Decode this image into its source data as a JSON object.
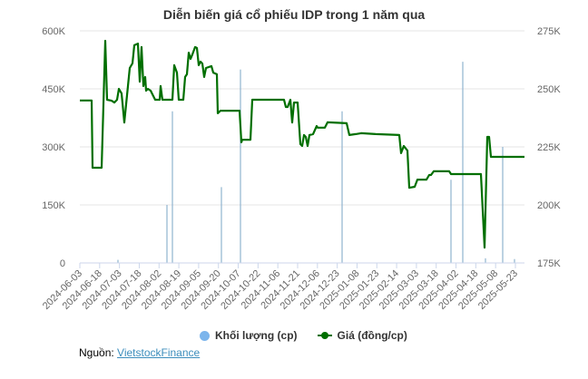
{
  "chart_data": {
    "type": "line",
    "title": "Diễn biến giá cổ phiếu IDP trong 1 năm qua",
    "xlabel": "",
    "ylabel_left": "Khối lượng (cp)",
    "ylabel_right": "Giá (đồng/cp)",
    "left_axis": {
      "ticks": [
        "0",
        "150K",
        "300K",
        "450K",
        "600K"
      ],
      "range": [
        0,
        600000
      ]
    },
    "right_axis": {
      "ticks": [
        "175K",
        "200K",
        "225K",
        "250K",
        "275K"
      ],
      "range": [
        175000,
        275000
      ]
    },
    "x_ticks": [
      "2024-06-03",
      "2024-06-18",
      "2024-07-03",
      "2024-07-18",
      "2024-08-02",
      "2024-08-19",
      "2024-09-05",
      "2024-09-20",
      "2024-10-07",
      "2024-10-22",
      "2024-11-06",
      "2024-11-21",
      "2024-12-06",
      "2024-12-23",
      "2025-01-08",
      "2025-01-23",
      "2025-02-14",
      "2025-03-03",
      "2025-03-18",
      "2025-04-02",
      "2025-04-18",
      "2025-05-08",
      "2025-05-23"
    ],
    "grid": true,
    "legend_position": "bottom",
    "series": [
      {
        "name": "Khối lượng (cp)",
        "type": "column",
        "color": "#7cb5ec",
        "points": [
          {
            "x": 130,
            "v": 8000
          },
          {
            "x": 184,
            "v": 150000
          },
          {
            "x": 190,
            "v": 392000
          },
          {
            "x": 244,
            "v": 196000
          },
          {
            "x": 265,
            "v": 500000
          },
          {
            "x": 377,
            "v": 392000
          },
          {
            "x": 497,
            "v": 215000
          },
          {
            "x": 510,
            "v": 520000
          },
          {
            "x": 535,
            "v": 12000
          },
          {
            "x": 554,
            "v": 300000
          },
          {
            "x": 567,
            "v": 10000
          }
        ]
      },
      {
        "name": "Giá (đồng/cp)",
        "type": "line",
        "color": "#006f00",
        "points": [
          {
            "x": 88,
            "p": 245000
          },
          {
            "x": 101,
            "p": 245000
          },
          {
            "x": 102,
            "p": 216000
          },
          {
            "x": 112,
            "p": 216000
          },
          {
            "x": 116,
            "p": 270700
          },
          {
            "x": 118,
            "p": 245300
          },
          {
            "x": 123,
            "p": 244900
          },
          {
            "x": 126,
            "p": 244100
          },
          {
            "x": 129,
            "p": 245300
          },
          {
            "x": 131,
            "p": 250000
          },
          {
            "x": 134,
            "p": 248000
          },
          {
            "x": 137,
            "p": 235500
          },
          {
            "x": 141,
            "p": 251200
          },
          {
            "x": 143,
            "p": 259000
          },
          {
            "x": 146,
            "p": 261000
          },
          {
            "x": 148,
            "p": 268800
          },
          {
            "x": 152,
            "p": 269500
          },
          {
            "x": 154,
            "p": 253100
          },
          {
            "x": 156,
            "p": 268000
          },
          {
            "x": 158,
            "p": 251200
          },
          {
            "x": 160,
            "p": 255100
          },
          {
            "x": 161,
            "p": 249200
          },
          {
            "x": 163,
            "p": 250000
          },
          {
            "x": 166,
            "p": 249200
          },
          {
            "x": 171,
            "p": 245300
          },
          {
            "x": 176,
            "p": 245300
          },
          {
            "x": 177,
            "p": 251200
          },
          {
            "x": 179,
            "p": 245300
          },
          {
            "x": 190,
            "p": 245300
          },
          {
            "x": 192,
            "p": 260200
          },
          {
            "x": 195,
            "p": 257000
          },
          {
            "x": 197,
            "p": 245300
          },
          {
            "x": 202,
            "p": 245300
          },
          {
            "x": 204,
            "p": 255100
          },
          {
            "x": 206,
            "p": 256300
          },
          {
            "x": 208,
            "p": 265600
          },
          {
            "x": 210,
            "p": 262900
          },
          {
            "x": 212,
            "p": 264800
          },
          {
            "x": 215,
            "p": 268000
          },
          {
            "x": 217,
            "p": 267600
          },
          {
            "x": 219,
            "p": 260200
          },
          {
            "x": 221,
            "p": 261700
          },
          {
            "x": 223,
            "p": 260900
          },
          {
            "x": 225,
            "p": 255100
          },
          {
            "x": 227,
            "p": 259000
          },
          {
            "x": 233,
            "p": 259800
          },
          {
            "x": 235,
            "p": 257000
          },
          {
            "x": 239,
            "p": 256300
          },
          {
            "x": 240,
            "p": 239500
          },
          {
            "x": 243,
            "p": 240600
          },
          {
            "x": 264,
            "p": 240600
          },
          {
            "x": 266,
            "p": 227000
          },
          {
            "x": 267,
            "p": 228100
          },
          {
            "x": 276,
            "p": 228100
          },
          {
            "x": 278,
            "p": 245300
          },
          {
            "x": 313,
            "p": 245300
          },
          {
            "x": 315,
            "p": 242200
          },
          {
            "x": 317,
            "p": 242200
          },
          {
            "x": 320,
            "p": 245300
          },
          {
            "x": 322,
            "p": 235500
          },
          {
            "x": 324,
            "p": 244100
          },
          {
            "x": 328,
            "p": 244100
          },
          {
            "x": 331,
            "p": 226200
          },
          {
            "x": 333,
            "p": 225400
          },
          {
            "x": 335,
            "p": 230100
          },
          {
            "x": 337,
            "p": 229300
          },
          {
            "x": 339,
            "p": 225400
          },
          {
            "x": 341,
            "p": 230100
          },
          {
            "x": 345,
            "p": 230500
          },
          {
            "x": 349,
            "p": 234000
          },
          {
            "x": 350,
            "p": 233300
          },
          {
            "x": 358,
            "p": 233300
          },
          {
            "x": 361,
            "p": 235600
          },
          {
            "x": 382,
            "p": 235200
          },
          {
            "x": 385,
            "p": 230100
          },
          {
            "x": 392,
            "p": 230500
          },
          {
            "x": 398,
            "p": 230900
          },
          {
            "x": 414,
            "p": 230500
          },
          {
            "x": 440,
            "p": 230100
          },
          {
            "x": 442,
            "p": 222300
          },
          {
            "x": 445,
            "p": 225400
          },
          {
            "x": 449,
            "p": 223400
          },
          {
            "x": 451,
            "p": 207400
          },
          {
            "x": 457,
            "p": 207800
          },
          {
            "x": 460,
            "p": 210900
          },
          {
            "x": 470,
            "p": 210900
          },
          {
            "x": 473,
            "p": 212900
          },
          {
            "x": 475,
            "p": 212900
          },
          {
            "x": 478,
            "p": 214500
          },
          {
            "x": 495,
            "p": 214500
          },
          {
            "x": 497,
            "p": 213300
          },
          {
            "x": 530,
            "p": 213300
          },
          {
            "x": 534,
            "p": 181600
          },
          {
            "x": 537,
            "p": 229300
          },
          {
            "x": 539,
            "p": 229300
          },
          {
            "x": 541,
            "p": 220700
          },
          {
            "x": 578,
            "p": 220700
          }
        ]
      }
    ]
  },
  "title": "Diễn biến giá cổ phiếu IDP trong 1 năm qua",
  "legend": {
    "volume_label": "Khối lượng (cp)",
    "price_label": "Giá (đồng/cp)",
    "volume_color": "#7cb5ec",
    "price_color": "#006f00"
  },
  "source": {
    "prefix": "Nguồn:",
    "link_text": "VietstockFinance"
  }
}
